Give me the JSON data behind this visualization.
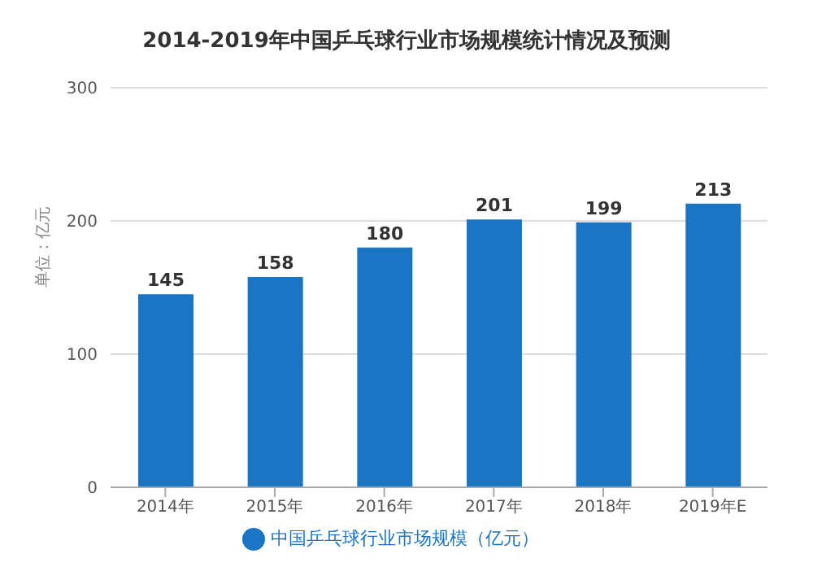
{
  "chart_data": {
    "type": "bar",
    "title": "2014-2019年中国乒乓球行业市场规模统计情况及预测",
    "ylabel": "单位：亿元",
    "categories": [
      "2014年",
      "2015年",
      "2016年",
      "2017年",
      "2018年",
      "2019年E"
    ],
    "series": [
      {
        "name": "中国乒乓球行业市场规模（亿元）",
        "color": "#1a75c4",
        "values": [
          145,
          158,
          180,
          201,
          199,
          213
        ]
      }
    ],
    "ylim": [
      0,
      300
    ],
    "yticks": [
      0,
      100,
      200,
      300
    ],
    "grid": "y",
    "legend": "bottom",
    "data_labels": true
  }
}
